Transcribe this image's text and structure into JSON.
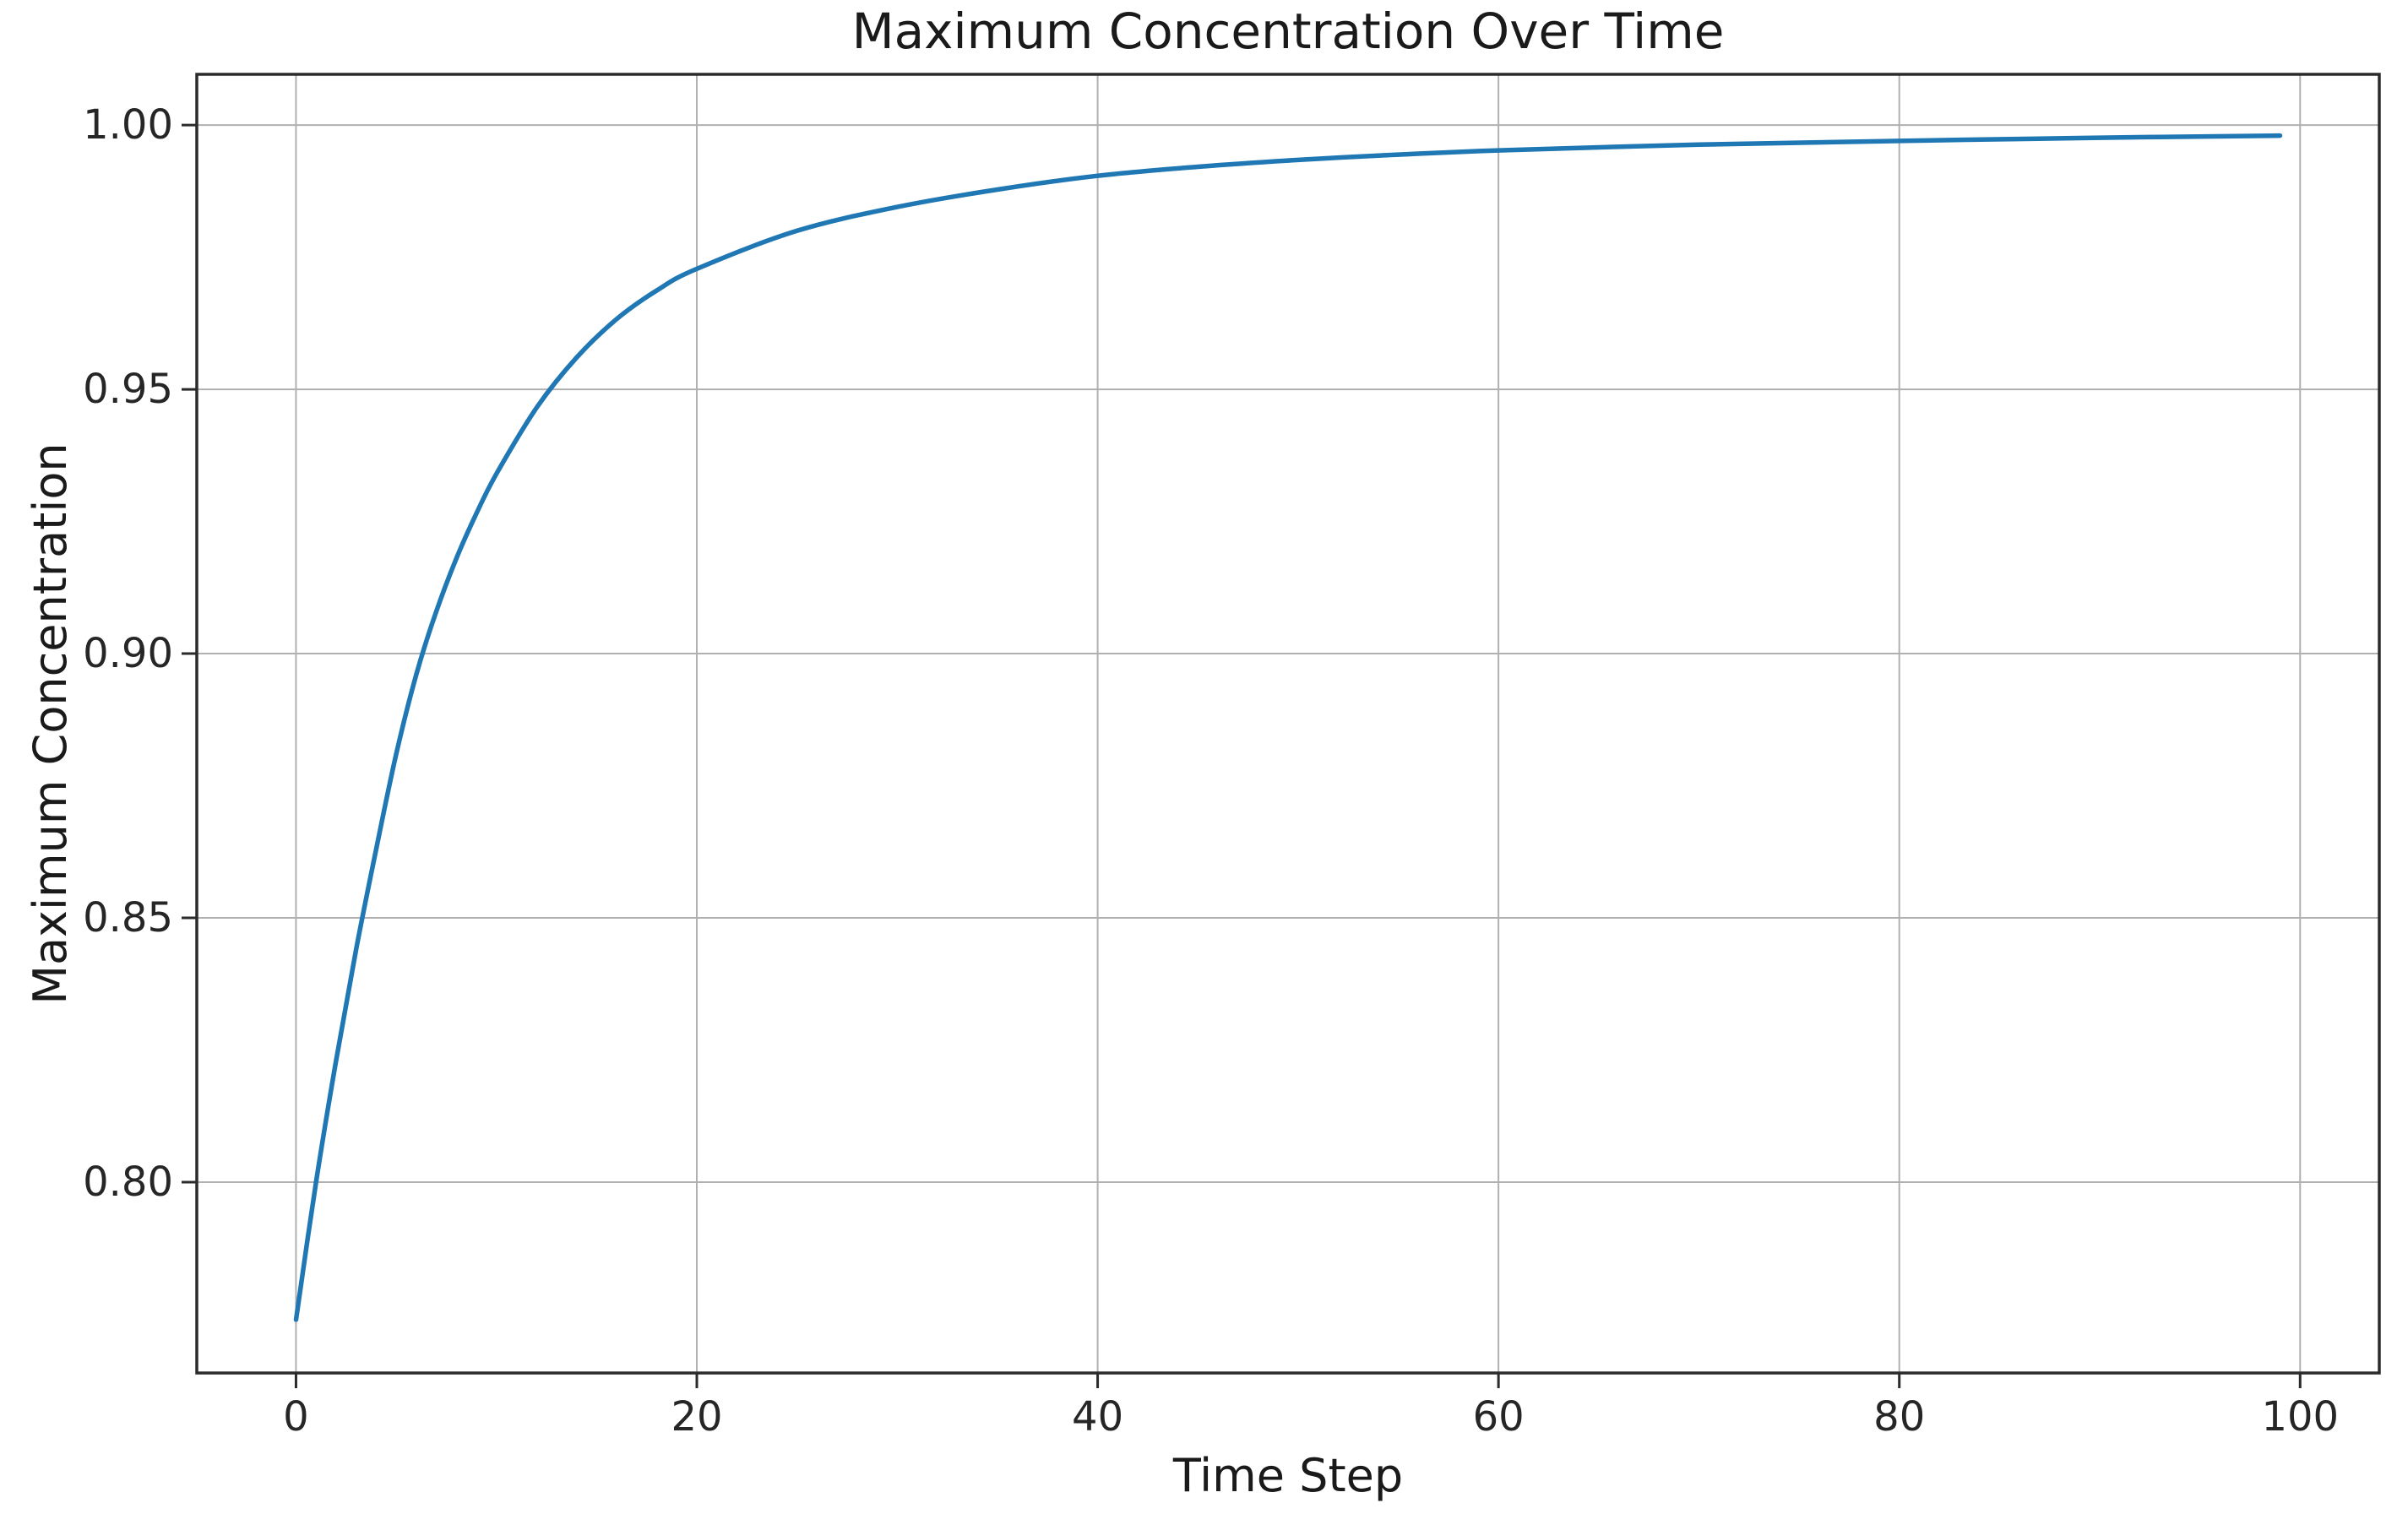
{
  "title": "Maximum Concentration Over Time",
  "colors": {
    "line": "#1f77b4",
    "grid": "#b0b0b0",
    "spine": "#2b2b2b",
    "text": "#1a1a1a",
    "background": "#ffffff"
  },
  "chart_data": {
    "type": "line",
    "title": "Maximum Concentration Over Time",
    "xlabel": "Time Step",
    "ylabel": "Maximum Concentration",
    "xlim": [
      -4.95,
      103.95
    ],
    "ylim": [
      0.7639,
      1.0096
    ],
    "x_ticks": [
      0,
      20,
      40,
      60,
      80,
      100
    ],
    "x_tick_labels": [
      "0",
      "20",
      "40",
      "60",
      "80",
      "100"
    ],
    "y_ticks": [
      0.8,
      0.85,
      0.9,
      0.95,
      1.0
    ],
    "y_tick_labels": [
      "0.80",
      "0.85",
      "0.90",
      "0.95",
      "1.00"
    ],
    "grid": true,
    "legend": "none",
    "series": [
      {
        "name": "max_concentration",
        "color": "#1f77b4",
        "points": [
          [
            0,
            0.774
          ],
          [
            1,
            0.8
          ],
          [
            2,
            0.823
          ],
          [
            3,
            0.844
          ],
          [
            4,
            0.863
          ],
          [
            5,
            0.881
          ],
          [
            6,
            0.896
          ],
          [
            7,
            0.908
          ],
          [
            8,
            0.918
          ],
          [
            9,
            0.9265
          ],
          [
            10,
            0.934
          ],
          [
            12,
            0.9465
          ],
          [
            14,
            0.956
          ],
          [
            16,
            0.9633
          ],
          [
            18,
            0.9687
          ],
          [
            20,
            0.9728
          ],
          [
            25,
            0.98
          ],
          [
            30,
            0.9845
          ],
          [
            35,
            0.9878
          ],
          [
            40,
            0.9904
          ],
          [
            45,
            0.9921
          ],
          [
            50,
            0.9934
          ],
          [
            55,
            0.9944
          ],
          [
            60,
            0.9952
          ],
          [
            70,
            0.9963
          ],
          [
            80,
            0.997
          ],
          [
            90,
            0.9976
          ],
          [
            99,
            0.998
          ]
        ]
      }
    ]
  }
}
